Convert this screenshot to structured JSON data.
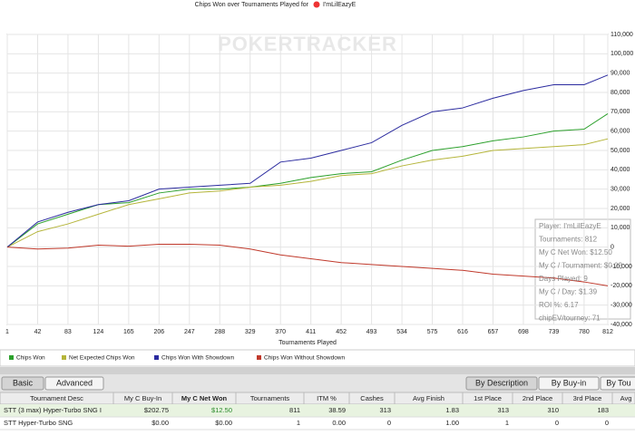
{
  "chart_data": {
    "type": "line",
    "title": "Chips Won over Tournaments Played for",
    "player": "I'mLilEazyE",
    "watermark": "POKERTRACKER",
    "x_label": "Tournaments Played",
    "x": [
      1,
      42,
      83,
      124,
      165,
      206,
      247,
      288,
      329,
      370,
      411,
      452,
      493,
      534,
      575,
      616,
      657,
      698,
      739,
      780,
      812
    ],
    "xlim": [
      1,
      812
    ],
    "xticks": [
      1,
      42,
      83,
      124,
      165,
      206,
      247,
      288,
      329,
      370,
      411,
      452,
      493,
      534,
      575,
      616,
      657,
      698,
      739,
      780,
      812
    ],
    "ylim": [
      -40000,
      110000
    ],
    "yticks": [
      {
        "value": -40000,
        "label": "-40,000"
      },
      {
        "value": -30000,
        "label": "-30,000"
      },
      {
        "value": -20000,
        "label": "-20,000"
      },
      {
        "value": -10000,
        "label": "-10,000"
      },
      0,
      {
        "value": 10000,
        "label": "10,000"
      },
      {
        "value": 20000,
        "label": "20,000"
      },
      {
        "value": 30000,
        "label": "30,000"
      },
      {
        "value": 40000,
        "label": "40,000"
      },
      {
        "value": 50000,
        "label": "50,000"
      },
      {
        "value": 60000,
        "label": "60,000"
      },
      {
        "value": 70000,
        "label": "70,000"
      },
      {
        "value": 80000,
        "label": "80,000"
      },
      {
        "value": 90000,
        "label": "90,000"
      },
      {
        "value": 100000,
        "label": "100,000"
      },
      {
        "value": 110000,
        "label": "110,000"
      }
    ],
    "grid": true,
    "series": [
      {
        "name": "Chips Won",
        "color": "#2ca02c",
        "values": [
          0,
          12000,
          17000,
          22000,
          23000,
          28000,
          30000,
          30000,
          31000,
          33000,
          36000,
          38000,
          39000,
          45000,
          50000,
          52000,
          55000,
          57000,
          60000,
          61000,
          69000
        ]
      },
      {
        "name": "Net Expected Chips Won",
        "color": "#b5b53a",
        "values": [
          0,
          8000,
          12000,
          17000,
          22000,
          25000,
          28000,
          29000,
          31000,
          32000,
          34000,
          37000,
          38000,
          42000,
          45000,
          47000,
          50000,
          51000,
          52000,
          53000,
          56000
        ]
      },
      {
        "name": "Chips Won With Showdown",
        "color": "#2b2b9f",
        "values": [
          0,
          13000,
          18000,
          22000,
          24000,
          30000,
          31000,
          32000,
          33000,
          44000,
          46000,
          50000,
          54000,
          63000,
          70000,
          72000,
          77000,
          81000,
          84000,
          84000,
          89000
        ]
      },
      {
        "name": "Chips Won Without Showdown",
        "color": "#c0392b",
        "values": [
          0,
          -1000,
          -500,
          1000,
          500,
          1500,
          1500,
          1000,
          -1000,
          -4000,
          -6000,
          -8000,
          -9000,
          -10000,
          -11000,
          -12000,
          -14000,
          -15000,
          -16000,
          -18000,
          -20000
        ]
      }
    ],
    "info_box": [
      "Player: I'mLilEazyE",
      "Tournaments: 812",
      "My C Net Won: $12.50",
      "My C / Tournament: $0.02",
      "Days Played: 9",
      "My C / Day: $1.39",
      "ROI %: 6.17",
      "chipEV/tourney: 71"
    ]
  },
  "tabs_left": [
    "Basic",
    "Advanced"
  ],
  "tabs_right": [
    "By Description",
    "By Buy-in",
    "By Tou"
  ],
  "table": {
    "header": [
      "Tournament Desc",
      "My C Buy-In",
      "My C Net Won",
      "Tournaments",
      "ITM %",
      "Cashes",
      "Avg Finish",
      "1st Place",
      "2nd Place",
      "3rd Place",
      "Avg"
    ],
    "rows": [
      [
        "STT (3 max) Hyper-Turbo SNG I",
        "$202.75",
        "$12.50",
        "811",
        "38.59",
        "313",
        "1.83",
        "313",
        "310",
        "183"
      ],
      [
        "STT Hyper-Turbo SNG",
        "$0.00",
        "$0.00",
        "1",
        "0.00",
        "0",
        "1.00",
        "1",
        "0",
        "0"
      ]
    ]
  }
}
